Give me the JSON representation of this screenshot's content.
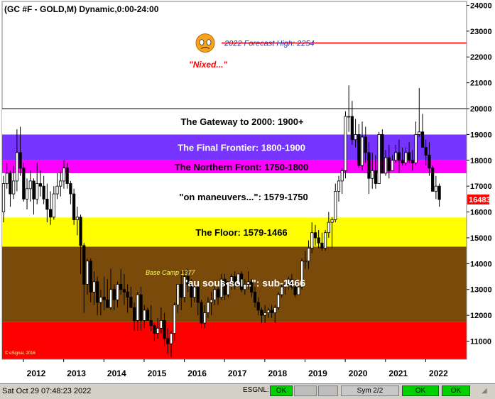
{
  "header": {
    "title": "(GC #F - GOLD,M) Dynamic,0:00-24:00"
  },
  "chart_data": {
    "type": "candlestick",
    "title": "(GC #F - GOLD,M) Dynamic,0:00-24:00",
    "x_ticks": [
      "2012",
      "2013",
      "2014",
      "2015",
      "2016",
      "2017",
      "2018",
      "2019",
      "2020",
      "2021",
      "2022"
    ],
    "y_ticks": [
      "11000",
      "12000",
      "13000",
      "14000",
      "15000",
      "16000",
      "17000",
      "18000",
      "19000",
      "20000",
      "21000",
      "22000",
      "23000",
      "24000"
    ],
    "ylim": [
      10300,
      24150
    ],
    "last_price": "16483",
    "zones": [
      {
        "label": "\"au sous-sol...\":  sub-1466",
        "from": 11750,
        "to": 14660,
        "color": "#7a4a0a",
        "text_color": "#ffffff"
      },
      {
        "label": "The Floor:  1579-1466",
        "from": 14660,
        "to": 15790,
        "color": "#ffff00",
        "text_color": "#000000"
      },
      {
        "label": "\"on maneuvers...\":  1579-1750",
        "from": 15790,
        "to": 17500,
        "color": "#ffffff",
        "text_color": "#000000"
      },
      {
        "label": "The Northern Front:  1750-1800",
        "from": 17500,
        "to": 18000,
        "color": "#ff00ff",
        "text_color": "#000000"
      },
      {
        "label": "The Final Frontier:  1800-1900",
        "from": 18000,
        "to": 19000,
        "color": "#7733ff",
        "text_color": "#ffffff"
      },
      {
        "label": "The Gateway to 2000:  1900+",
        "from": 19000,
        "to": 20000,
        "color": "#ffffff",
        "text_color": "#000000"
      }
    ],
    "bottom_zone": {
      "from": 10300,
      "to": 11750,
      "color": "#ff0000"
    },
    "forecast": {
      "label": "2022 Forecast High:  2254",
      "value": 22540,
      "color": "#ff0000"
    },
    "annotations": {
      "nixed": "\"Nixed...\"",
      "base_camp": "Base Camp 1377",
      "copyright": "© eSignal, 2016"
    },
    "series": [
      {
        "values": [
          [
            16000,
            17400,
            15600,
            17100
          ],
          [
            17100,
            17900,
            16900,
            17500
          ],
          [
            17500,
            17600,
            16200,
            16700
          ],
          [
            16700,
            17800,
            16500,
            17200
          ],
          [
            17200,
            19200,
            16800,
            18300
          ],
          [
            18300,
            19300,
            17400,
            17700
          ],
          [
            17700,
            17900,
            16400,
            16500
          ],
          [
            16500,
            17300,
            16100,
            16900
          ],
          [
            16900,
            17600,
            16400,
            17200
          ],
          [
            17200,
            17300,
            15900,
            16500
          ],
          [
            16500,
            17900,
            16300,
            17100
          ],
          [
            17100,
            17600,
            16600,
            17000
          ],
          [
            17000,
            17400,
            16300,
            16500
          ],
          [
            16500,
            17100,
            15600,
            16100
          ],
          [
            16100,
            16800,
            15500,
            15800
          ],
          [
            15800,
            17000,
            15700,
            16700
          ],
          [
            16700,
            17500,
            16500,
            17000
          ],
          [
            17000,
            17600,
            16600,
            17200
          ],
          [
            17200,
            18000,
            16900,
            17700
          ],
          [
            17700,
            17900,
            16900,
            17100
          ],
          [
            17100,
            17200,
            16300,
            16700
          ],
          [
            16700,
            16900,
            15500,
            15700
          ],
          [
            15700,
            16200,
            15100,
            15800
          ],
          [
            15800,
            15900,
            13600,
            14700
          ],
          [
            14700,
            14800,
            12100,
            13200
          ],
          [
            13200,
            14200,
            12800,
            14100
          ],
          [
            14100,
            14200,
            12500,
            12900
          ],
          [
            12900,
            13700,
            12400,
            13300
          ],
          [
            13300,
            13500,
            12000,
            12500
          ],
          [
            12500,
            13000,
            12000,
            12700
          ],
          [
            12700,
            13500,
            12200,
            12600
          ],
          [
            12600,
            13400,
            12400,
            12300
          ],
          [
            12300,
            13800,
            12200,
            13000
          ],
          [
            13000,
            13200,
            12200,
            12600
          ],
          [
            12600,
            13300,
            12300,
            13200
          ],
          [
            13200,
            13800,
            12800,
            13000
          ],
          [
            13000,
            13600,
            12400,
            12900
          ],
          [
            12900,
            13200,
            12100,
            12700
          ],
          [
            12700,
            13100,
            12300,
            12300
          ],
          [
            12300,
            12500,
            11400,
            11800
          ],
          [
            11800,
            12900,
            11400,
            12800
          ],
          [
            12800,
            13100,
            11400,
            11800
          ],
          [
            11800,
            12400,
            11500,
            12200
          ],
          [
            12200,
            12300,
            11800,
            11800
          ],
          [
            11800,
            12400,
            11400,
            11600
          ],
          [
            11600,
            11700,
            11000,
            11300
          ],
          [
            11300,
            11900,
            11100,
            11500
          ],
          [
            11500,
            12300,
            11300,
            11800
          ],
          [
            11800,
            12100,
            10800,
            11100
          ],
          [
            11100,
            11500,
            10500,
            10900
          ],
          [
            10900,
            11400,
            10400,
            11300
          ],
          [
            11300,
            12500,
            11000,
            12400
          ],
          [
            12400,
            13100,
            12100,
            13200
          ],
          [
            13200,
            13700,
            12200,
            12700
          ],
          [
            12700,
            13700,
            12500,
            13500
          ],
          [
            13500,
            13800,
            12900,
            13200
          ],
          [
            13200,
            13400,
            12300,
            12700
          ],
          [
            12700,
            13200,
            12500,
            13100
          ],
          [
            13100,
            13200,
            12000,
            12500
          ],
          [
            12500,
            12600,
            11500,
            11700
          ],
          [
            11700,
            12400,
            11500,
            12100
          ],
          [
            12100,
            12700,
            11900,
            12500
          ],
          [
            12500,
            12900,
            12000,
            12600
          ],
          [
            12600,
            13100,
            12400,
            13000
          ],
          [
            13000,
            13100,
            12400,
            12700
          ],
          [
            12700,
            13600,
            12600,
            13400
          ],
          [
            13400,
            13600,
            12600,
            12800
          ],
          [
            12800,
            13300,
            12700,
            13300
          ],
          [
            13300,
            13600,
            13000,
            13500
          ],
          [
            13500,
            13700,
            13000,
            13200
          ],
          [
            13200,
            13600,
            13100,
            13600
          ],
          [
            13600,
            13700,
            12900,
            13000
          ],
          [
            13000,
            13400,
            12800,
            13200
          ],
          [
            13200,
            13700,
            13000,
            13300
          ],
          [
            13300,
            13400,
            12700,
            12900
          ],
          [
            12900,
            13100,
            12300,
            12500
          ],
          [
            12500,
            12700,
            12000,
            12200
          ],
          [
            12200,
            12300,
            11700,
            12000
          ],
          [
            12000,
            12400,
            11700,
            12100
          ],
          [
            12100,
            12300,
            11900,
            12200
          ],
          [
            12200,
            12400,
            11900,
            12100
          ],
          [
            12100,
            12400,
            11700,
            12300
          ],
          [
            12300,
            12900,
            12200,
            12800
          ],
          [
            12800,
            13200,
            12700,
            13100
          ],
          [
            13100,
            13300,
            12800,
            13200
          ],
          [
            13200,
            13500,
            13000,
            13400
          ],
          [
            13400,
            13600,
            13000,
            13100
          ],
          [
            13100,
            13400,
            12700,
            12800
          ],
          [
            12800,
            13300,
            12800,
            13100
          ],
          [
            13100,
            14200,
            13000,
            14100
          ],
          [
            14100,
            14500,
            13800,
            14100
          ],
          [
            14100,
            14900,
            13800,
            14600
          ],
          [
            14600,
            15600,
            14400,
            15200
          ],
          [
            15200,
            15500,
            14700,
            15000
          ],
          [
            15000,
            15300,
            14600,
            14800
          ],
          [
            14800,
            15200,
            14500,
            14600
          ],
          [
            14600,
            15300,
            14500,
            15200
          ],
          [
            15200,
            16000,
            15000,
            15600
          ],
          [
            15600,
            15800,
            14600,
            15700
          ],
          [
            15700,
            17100,
            15600,
            16800
          ],
          [
            16800,
            17400,
            16400,
            17200
          ],
          [
            17200,
            17700,
            16700,
            17600
          ],
          [
            17600,
            19900,
            17300,
            19700
          ],
          [
            19700,
            20900,
            19100,
            19700
          ],
          [
            19700,
            20300,
            18600,
            18800
          ],
          [
            18800,
            19600,
            18500,
            19000
          ],
          [
            19000,
            19400,
            17700,
            17800
          ],
          [
            17800,
            19500,
            17600,
            18900
          ],
          [
            18900,
            19300,
            17900,
            18300
          ],
          [
            18300,
            18700,
            16700,
            17300
          ],
          [
            17300,
            18300,
            16900,
            17600
          ],
          [
            17600,
            18200,
            16900,
            17100
          ],
          [
            17100,
            19100,
            17100,
            19000
          ],
          [
            19000,
            19200,
            17500,
            17500
          ],
          [
            17500,
            18400,
            17400,
            18100
          ],
          [
            18100,
            18600,
            17300,
            17600
          ],
          [
            17600,
            18200,
            17600,
            18000
          ],
          [
            18000,
            18600,
            17900,
            18300
          ],
          [
            18300,
            18800,
            17500,
            18000
          ],
          [
            18000,
            18500,
            17800,
            17900
          ],
          [
            17900,
            18500,
            17800,
            18300
          ],
          [
            18300,
            18700,
            17900,
            18000
          ],
          [
            18000,
            18400,
            17600,
            17900
          ],
          [
            17900,
            19500,
            17800,
            19000
          ],
          [
            19000,
            20800,
            18900,
            19100
          ],
          [
            19100,
            19800,
            18700,
            18500
          ],
          [
            18500,
            18800,
            17800,
            18200
          ],
          [
            18200,
            18700,
            17400,
            17700
          ],
          [
            17700,
            17800,
            16800,
            16800
          ],
          [
            16800,
            17400,
            16500,
            17000
          ],
          [
            17000,
            17100,
            16200,
            16483
          ]
        ]
      }
    ]
  },
  "status_bar": {
    "datetime": "Sat Oct 29 07:48:23 2022",
    "esgnl_label": "ESGNL:",
    "ok1": "OK",
    "sym_label": "Sym 2/2",
    "ok2": "OK",
    "ok3": "OK"
  },
  "colors": {
    "up_candle": "#ffffff",
    "down_candle": "#000000",
    "price_tag": "#ff0000",
    "gateway_line": "#000000"
  }
}
